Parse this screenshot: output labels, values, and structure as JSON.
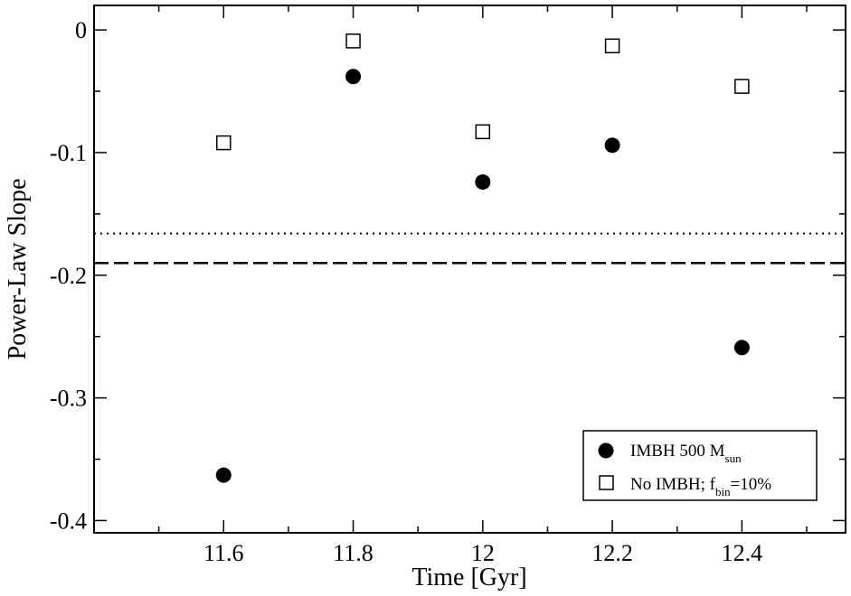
{
  "chart_data": {
    "type": "scatter",
    "xlabel": "Time [Gyr]",
    "ylabel": "Power-Law Slope",
    "xlim": [
      11.4,
      12.56
    ],
    "ylim": [
      -0.41,
      0.02
    ],
    "xticks": [
      {
        "value": 11.6,
        "label": "11.6"
      },
      {
        "value": 11.8,
        "label": "11.8"
      },
      {
        "value": 12.0,
        "label": "12"
      },
      {
        "value": 12.2,
        "label": "12.2"
      },
      {
        "value": 12.4,
        "label": "12.4"
      }
    ],
    "xminor": [
      11.5,
      11.7,
      11.9,
      12.1,
      12.3,
      12.5
    ],
    "yticks": [
      {
        "value": 0.0,
        "label": "0"
      },
      {
        "value": -0.1,
        "label": "-0.1"
      },
      {
        "value": -0.2,
        "label": "-0.2"
      },
      {
        "value": -0.3,
        "label": "-0.3"
      },
      {
        "value": -0.4,
        "label": "-0.4"
      }
    ],
    "yminor": [
      -0.05,
      -0.15,
      -0.25,
      -0.35
    ],
    "grid": false,
    "legend_position": "bottom-right",
    "series": [
      {
        "name": "IMBH 500 M",
        "name_sub": "sun",
        "marker": "filled-circle",
        "color": "#000000",
        "x": [
          11.6,
          11.8,
          12.0,
          12.2,
          12.4
        ],
        "y": [
          -0.363,
          -0.038,
          -0.124,
          -0.094,
          -0.259
        ]
      },
      {
        "name": "No IMBH; f",
        "name_sub": "bin",
        "name_suffix": "=10%",
        "marker": "open-square",
        "color": "#000000",
        "x": [
          11.6,
          11.8,
          12.0,
          12.2,
          12.4
        ],
        "y": [
          -0.092,
          -0.009,
          -0.083,
          -0.013,
          -0.046
        ]
      }
    ],
    "reference_lines": [
      {
        "style": "dotted",
        "y": -0.166
      },
      {
        "style": "dashed",
        "y": -0.19
      }
    ]
  }
}
